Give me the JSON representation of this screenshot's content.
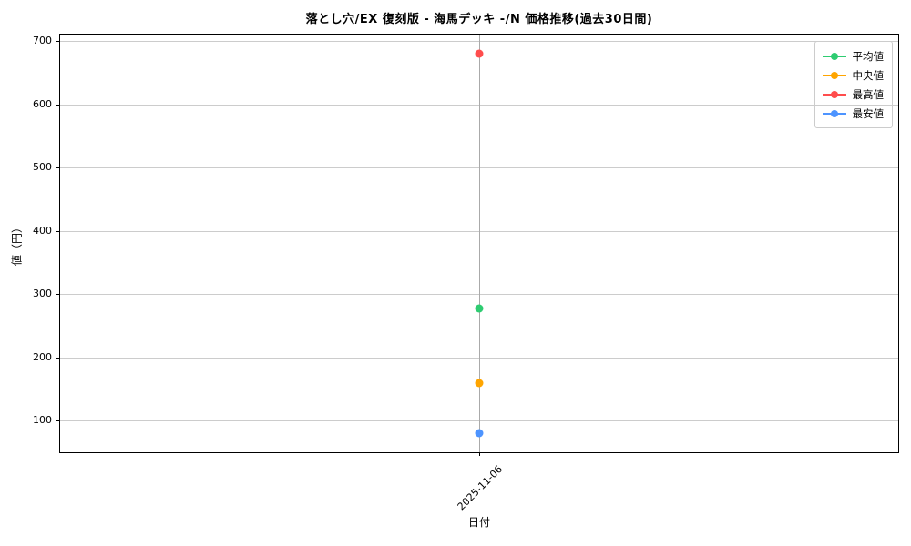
{
  "figure": {
    "background": "#ffffff"
  },
  "chart_data": {
    "type": "line",
    "title": "落とし穴/EX 復刻版 - 海馬デッキ -/N 価格推移(過去30日間)",
    "xlabel": "日付",
    "ylabel": "値（円）",
    "x": [
      "2025-11-06"
    ],
    "series": [
      {
        "name": "平均値",
        "color": "#2ecc71",
        "values": [
          277
        ]
      },
      {
        "name": "中央値",
        "color": "#ffa500",
        "values": [
          160
        ]
      },
      {
        "name": "最高値",
        "color": "#ff4d4d",
        "values": [
          680
        ]
      },
      {
        "name": "最安値",
        "color": "#4d94ff",
        "values": [
          80
        ]
      }
    ],
    "ylim": [
      50,
      710
    ],
    "yticks": [
      100,
      200,
      300,
      400,
      500,
      600,
      700
    ],
    "grid": true,
    "grid_color": "#cccccc",
    "x_grid_color": "#aaaaaa",
    "legend_position": "upper right"
  }
}
